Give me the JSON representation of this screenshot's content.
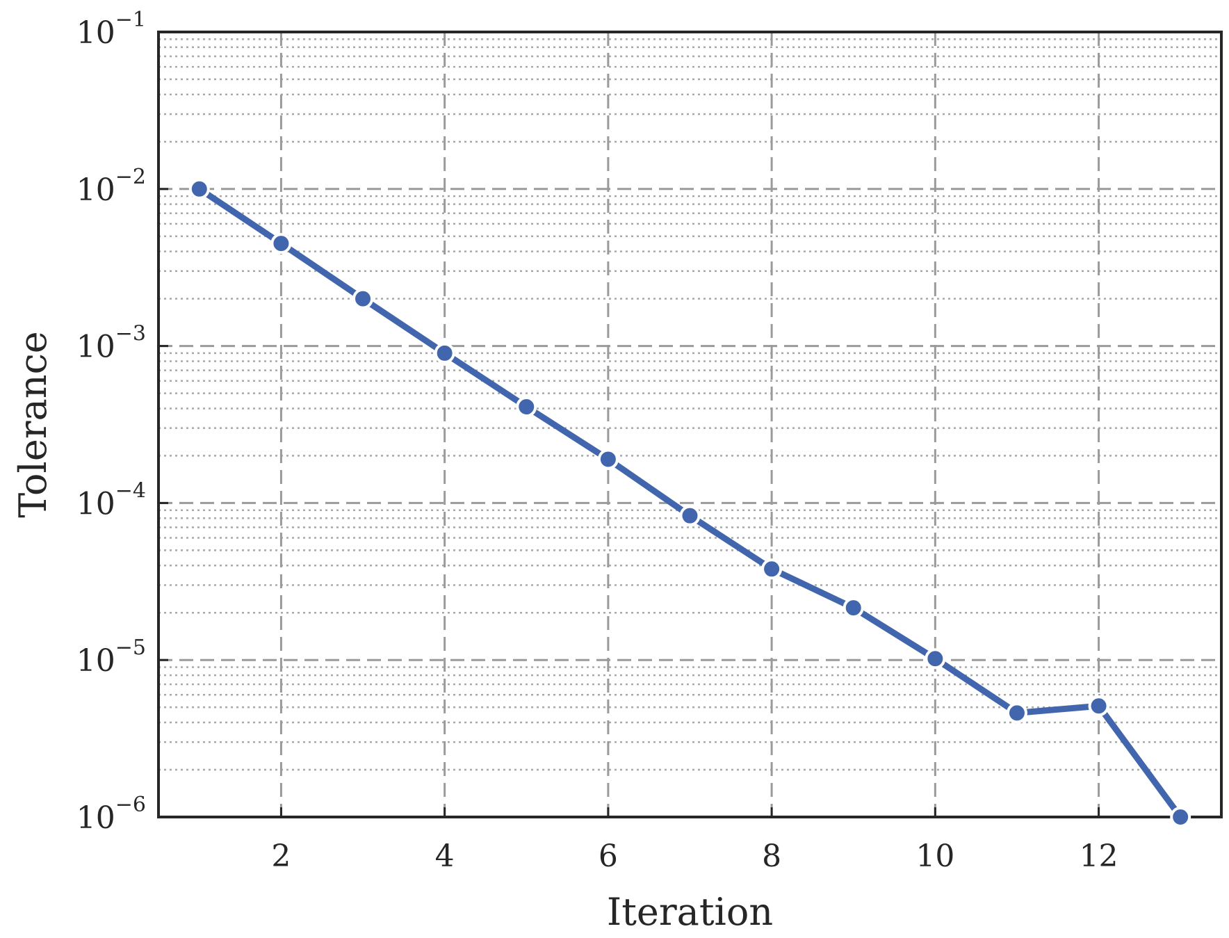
{
  "chart_data": {
    "type": "line",
    "title": "",
    "xlabel": "Iteration",
    "ylabel": "Tolerance",
    "xlim": [
      0.5,
      13.5
    ],
    "ylim": [
      1e-06,
      0.1
    ],
    "yscale": "log",
    "grid": {
      "major": true,
      "minor": true
    },
    "x_ticks": [
      2,
      4,
      6,
      8,
      10,
      12
    ],
    "y_ticks": [
      {
        "value": 0.1,
        "base": "10",
        "exp": "−1"
      },
      {
        "value": 0.01,
        "base": "10",
        "exp": "−2"
      },
      {
        "value": 0.001,
        "base": "10",
        "exp": "−3"
      },
      {
        "value": 0.0001,
        "base": "10",
        "exp": "−4"
      },
      {
        "value": 1e-05,
        "base": "10",
        "exp": "−5"
      },
      {
        "value": 1e-06,
        "base": "10",
        "exp": "−6"
      }
    ],
    "series": [
      {
        "color": "#4266ae",
        "marker": "circle",
        "x": [
          1,
          2,
          3,
          4,
          5,
          6,
          7,
          8,
          9,
          10,
          11,
          12,
          13
        ],
        "y": [
          0.01,
          0.0045,
          0.002,
          0.0009,
          0.00041,
          0.00019,
          8.3e-05,
          3.8e-05,
          2.15e-05,
          1.02e-05,
          4.6e-06,
          5.1e-06,
          1e-06
        ]
      }
    ]
  }
}
